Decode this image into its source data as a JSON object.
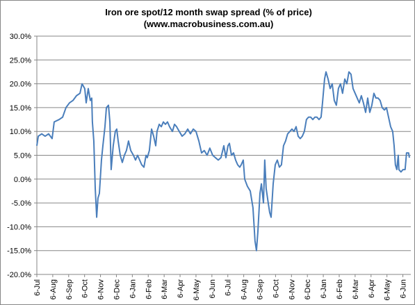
{
  "chart_data": {
    "type": "line",
    "title": "Iron ore spot/12 month swap spread (% of price)",
    "subtitle": "(www.macrobusiness.com.au)",
    "ylim": [
      -20,
      30
    ],
    "yticks": [
      {
        "value": -20,
        "label": "-20.0%"
      },
      {
        "value": -15,
        "label": "-15.0%"
      },
      {
        "value": -10,
        "label": "-10.0%"
      },
      {
        "value": -5,
        "label": "-5.0%"
      },
      {
        "value": 0,
        "label": "0.0%"
      },
      {
        "value": 5,
        "label": "5.0%"
      },
      {
        "value": 10,
        "label": "10.0%"
      },
      {
        "value": 15,
        "label": "15.0%"
      },
      {
        "value": 20,
        "label": "20.0%"
      },
      {
        "value": 25,
        "label": "25.0%"
      },
      {
        "value": 30,
        "label": "30.0%"
      }
    ],
    "xlim": [
      0,
      23.5
    ],
    "xticks": [
      {
        "value": 0,
        "label": "6-Jul"
      },
      {
        "value": 1,
        "label": "6-Aug"
      },
      {
        "value": 2,
        "label": "6-Sep"
      },
      {
        "value": 3,
        "label": "6-Oct"
      },
      {
        "value": 4,
        "label": "6-Nov"
      },
      {
        "value": 5,
        "label": "6-Dec"
      },
      {
        "value": 6,
        "label": "6-Jan"
      },
      {
        "value": 7,
        "label": "6-Feb"
      },
      {
        "value": 8,
        "label": "6-Mar"
      },
      {
        "value": 9,
        "label": "6-Apr"
      },
      {
        "value": 10,
        "label": "6-May"
      },
      {
        "value": 11,
        "label": "6-Jun"
      },
      {
        "value": 12,
        "label": "6-Jul"
      },
      {
        "value": 13,
        "label": "6-Aug"
      },
      {
        "value": 14,
        "label": "6-Sep"
      },
      {
        "value": 15,
        "label": "6-Oct"
      },
      {
        "value": 16,
        "label": "6-Nov"
      },
      {
        "value": 17,
        "label": "6-Dec"
      },
      {
        "value": 18,
        "label": "6-Jan"
      },
      {
        "value": 19,
        "label": "6-Feb"
      },
      {
        "value": 20,
        "label": "6-Mar"
      },
      {
        "value": 21,
        "label": "6-Apr"
      },
      {
        "value": 22,
        "label": "6-May"
      },
      {
        "value": 23,
        "label": "6-Jun"
      }
    ],
    "grid": true,
    "color": "#4a7ebb",
    "x": [
      0,
      0.09,
      0.31,
      0.52,
      0.74,
      0.96,
      1.09,
      1.4,
      1.62,
      1.83,
      2.05,
      2.27,
      2.49,
      2.71,
      2.84,
      3.01,
      3.1,
      3.23,
      3.36,
      3.45,
      3.49,
      3.58,
      3.67,
      3.76,
      3.84,
      3.93,
      4.06,
      4.15,
      4.28,
      4.37,
      4.5,
      4.59,
      4.67,
      4.8,
      4.93,
      5.02,
      5.11,
      5.24,
      5.37,
      5.5,
      5.63,
      5.76,
      5.9,
      6.07,
      6.2,
      6.33,
      6.46,
      6.59,
      6.73,
      6.86,
      6.94,
      7.07,
      7.21,
      7.34,
      7.47,
      7.55,
      7.69,
      7.82,
      7.95,
      8.08,
      8.21,
      8.34,
      8.52,
      8.65,
      8.78,
      8.95,
      9.13,
      9.3,
      9.48,
      9.65,
      9.83,
      10.0,
      10.18,
      10.35,
      10.52,
      10.7,
      10.87,
      11.05,
      11.22,
      11.4,
      11.57,
      11.75,
      11.88,
      12.01,
      12.1,
      12.23,
      12.36,
      12.49,
      12.62,
      12.75,
      12.84,
      12.97,
      13.06,
      13.23,
      13.41,
      13.58,
      13.71,
      13.8,
      13.89,
      14.02,
      14.11,
      14.24,
      14.32,
      14.41,
      14.54,
      14.63,
      14.72,
      14.85,
      14.98,
      15.11,
      15.24,
      15.37,
      15.5,
      15.63,
      15.76,
      15.9,
      16.03,
      16.16,
      16.29,
      16.42,
      16.55,
      16.68,
      16.81,
      16.94,
      17.07,
      17.21,
      17.34,
      17.47,
      17.6,
      17.73,
      17.86,
      17.95,
      18.08,
      18.17,
      18.3,
      18.43,
      18.56,
      18.69,
      18.82,
      18.95,
      19.08,
      19.21,
      19.35,
      19.48,
      19.61,
      19.74,
      19.87,
      20.0,
      20.13,
      20.26,
      20.39,
      20.52,
      20.66,
      20.79,
      20.92,
      21.05,
      21.18,
      21.31,
      21.44,
      21.57,
      21.7,
      21.84,
      21.97,
      22.1,
      22.23,
      22.36,
      22.45,
      22.53,
      22.62,
      22.71,
      22.75,
      22.88,
      23.01,
      23.14,
      23.23,
      23.36,
      23.41
    ],
    "values": [
      7,
      9,
      9.5,
      9,
      9.5,
      8.5,
      12,
      12.5,
      13,
      15,
      16,
      16.5,
      17.5,
      18,
      20,
      19,
      16,
      19,
      16.5,
      17,
      12,
      8,
      -2,
      -8,
      -4,
      -3,
      4,
      7,
      11,
      15,
      15.5,
      12,
      2,
      7,
      10,
      10.5,
      8,
      5,
      3.5,
      5,
      6,
      8,
      6,
      5,
      4,
      5,
      4,
      3,
      2.5,
      5,
      4.5,
      6,
      10.5,
      9,
      7,
      10,
      11.5,
      11,
      12,
      11.5,
      12,
      11,
      10,
      11.5,
      11,
      10,
      9,
      9.5,
      10.5,
      9.5,
      10.5,
      10,
      8,
      5.5,
      6,
      5,
      6.5,
      5,
      4.5,
      4,
      4.5,
      7,
      4.5,
      7,
      7.5,
      5,
      5.5,
      4,
      3,
      2.5,
      3,
      4,
      0,
      -1.5,
      -2.5,
      -6,
      -13,
      -15,
      -11,
      -3,
      -1,
      -5,
      4,
      -2,
      -5,
      -7,
      -8,
      -1,
      3,
      4,
      2.5,
      3,
      7,
      8,
      9.5,
      10,
      10.5,
      10,
      11,
      9,
      8.5,
      9,
      10,
      12.5,
      13,
      13,
      12.5,
      13,
      13,
      12.5,
      13,
      16,
      21,
      22.5,
      21,
      19,
      20,
      16.5,
      15.5,
      19,
      20,
      18,
      21,
      20,
      22.5,
      22,
      19,
      18,
      17,
      16,
      17.5,
      16,
      14,
      17,
      14,
      15.5,
      18,
      17,
      17,
      16.5,
      15,
      14.5,
      15,
      13,
      11,
      10,
      7,
      3,
      2,
      5,
      2,
      1.5,
      2,
      2,
      5.5,
      5.5,
      4.5
    ]
  }
}
